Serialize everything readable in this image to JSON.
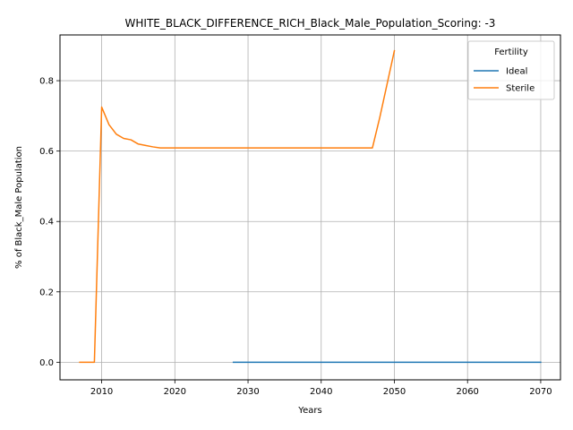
{
  "chart_data": {
    "type": "line",
    "title": "WHITE_BLACK_DIFFERENCE_RICH_Black_Male_Population_Scoring: -3",
    "xlabel": "Years",
    "ylabel": "% of Black_Male Population",
    "xlim": [
      2004.3,
      2072.7
    ],
    "ylim": [
      -0.05,
      0.93
    ],
    "xticks": [
      2010,
      2020,
      2030,
      2040,
      2050,
      2060,
      2070
    ],
    "yticks": [
      0.0,
      0.2,
      0.4,
      0.6,
      0.8
    ],
    "ytick_labels": [
      "0.0",
      "0.2",
      "0.4",
      "0.6",
      "0.8"
    ],
    "grid": true,
    "legend": {
      "title": "Fertility",
      "placement": "top-right"
    },
    "series": [
      {
        "name": "Ideal",
        "color": "#1f77b4",
        "x": [
          2028,
          2030,
          2035,
          2040,
          2045,
          2050,
          2055,
          2060,
          2065,
          2070
        ],
        "y": [
          0.0,
          0.0,
          0.0,
          0.0,
          0.0,
          0.0,
          0.0,
          0.0,
          0.0,
          0.0
        ]
      },
      {
        "name": "Sterile",
        "color": "#ff7f0e",
        "x": [
          2007,
          2008,
          2009,
          2010,
          2011,
          2012,
          2013,
          2014,
          2015,
          2016,
          2017,
          2018,
          2020,
          2025,
          2030,
          2035,
          2040,
          2045,
          2047,
          2048,
          2049,
          2050
        ],
        "y": [
          0.0,
          0.0,
          0.0,
          0.725,
          0.675,
          0.648,
          0.636,
          0.632,
          0.62,
          0.616,
          0.612,
          0.609,
          0.609,
          0.609,
          0.609,
          0.609,
          0.609,
          0.609,
          0.609,
          0.695,
          0.79,
          0.885
        ]
      }
    ]
  }
}
